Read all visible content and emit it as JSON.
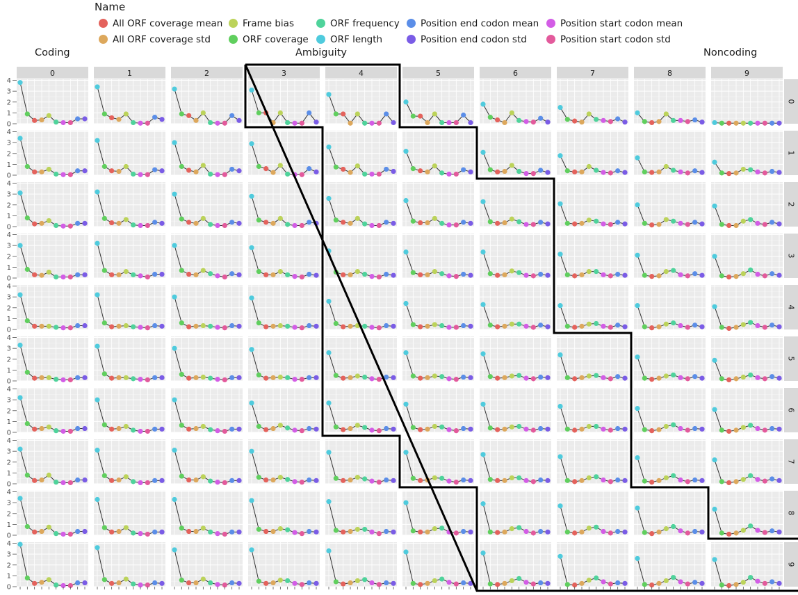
{
  "legend": {
    "title": "Name",
    "items": [
      {
        "label": "All ORF coverage mean",
        "color": "#e4625c"
      },
      {
        "label": "All ORF coverage std",
        "color": "#dda85c"
      },
      {
        "label": "Frame bias",
        "color": "#bcd35a"
      },
      {
        "label": "ORF coverage",
        "color": "#60cf5e"
      },
      {
        "label": "ORF frequency",
        "color": "#4fd39b"
      },
      {
        "label": "ORF length",
        "color": "#4fcbdd"
      },
      {
        "label": "Position end codon mean",
        "color": "#5b8ee8"
      },
      {
        "label": "Position end codon std",
        "color": "#7a5ce6"
      },
      {
        "label": "Position start codon mean",
        "color": "#d35de6"
      },
      {
        "label": "Position start codon std",
        "color": "#e35a9c"
      }
    ]
  },
  "regions": {
    "coding": "Coding",
    "ambiguity": "Ambiguity",
    "noncoding": "Noncoding"
  },
  "chart_data": {
    "type": "line",
    "facet_type": "grid",
    "col_facets": [
      "0",
      "1",
      "2",
      "3",
      "4",
      "5",
      "6",
      "7",
      "8",
      "9"
    ],
    "row_facets": [
      "0",
      "1",
      "2",
      "3",
      "4",
      "5",
      "6",
      "7",
      "8",
      "9"
    ],
    "x_order": [
      "ORF length",
      "ORF coverage",
      "All ORF coverage mean",
      "All ORF coverage std",
      "Frame bias",
      "ORF frequency",
      "Position start codon mean",
      "Position start codon std",
      "Position end codon mean",
      "Position end codon std"
    ],
    "y_ticks": [
      0,
      1,
      2,
      3,
      4
    ],
    "ylim": [
      0,
      4.1
    ],
    "grid": true,
    "legend_position": "top",
    "ambiguity_region_boundary": true,
    "panels": [
      [
        [
          3.8,
          0.9,
          0.3,
          0.35,
          0.75,
          0.15,
          0.1,
          0.1,
          0.45,
          0.45
        ],
        [
          3.4,
          0.9,
          0.55,
          0.4,
          0.9,
          0.1,
          0.05,
          0.05,
          0.6,
          0.4
        ],
        [
          3.2,
          0.9,
          0.75,
          0.3,
          1.0,
          0.1,
          0.05,
          0.05,
          0.75,
          0.3
        ],
        [
          3.1,
          1.0,
          1.0,
          0.1,
          1.0,
          0.1,
          0.05,
          0.05,
          1.0,
          0.15
        ],
        [
          2.7,
          0.9,
          0.9,
          0.05,
          0.9,
          0.05,
          0.05,
          0.05,
          0.9,
          0.1
        ],
        [
          2.0,
          0.7,
          0.7,
          0.1,
          0.9,
          0.1,
          0.1,
          0.1,
          0.8,
          0.1
        ],
        [
          1.8,
          0.6,
          0.35,
          0.1,
          1.0,
          0.3,
          0.2,
          0.15,
          0.5,
          0.15
        ],
        [
          1.5,
          0.4,
          0.25,
          0.15,
          0.9,
          0.4,
          0.3,
          0.2,
          0.45,
          0.15
        ],
        [
          1.0,
          0.2,
          0.1,
          0.2,
          0.9,
          0.3,
          0.3,
          0.2,
          0.35,
          0.15
        ],
        [
          0.1,
          0.05,
          0.05,
          0.05,
          0.05,
          0.05,
          0.05,
          0.05,
          0.05,
          0.05
        ]
      ],
      [
        [
          3.4,
          0.8,
          0.3,
          0.3,
          0.55,
          0.1,
          0.05,
          0.05,
          0.4,
          0.4
        ],
        [
          3.2,
          0.8,
          0.4,
          0.35,
          0.8,
          0.1,
          0.05,
          0.05,
          0.5,
          0.4
        ],
        [
          3.0,
          0.8,
          0.45,
          0.3,
          0.9,
          0.1,
          0.05,
          0.05,
          0.55,
          0.4
        ],
        [
          2.9,
          0.8,
          0.6,
          0.25,
          0.9,
          0.1,
          0.05,
          0.05,
          0.6,
          0.3
        ],
        [
          2.6,
          0.75,
          0.55,
          0.25,
          0.85,
          0.1,
          0.1,
          0.1,
          0.55,
          0.35
        ],
        [
          2.2,
          0.6,
          0.4,
          0.3,
          0.85,
          0.2,
          0.1,
          0.1,
          0.5,
          0.3
        ],
        [
          2.1,
          0.5,
          0.3,
          0.35,
          0.9,
          0.35,
          0.15,
          0.15,
          0.45,
          0.25
        ],
        [
          1.8,
          0.4,
          0.3,
          0.3,
          0.8,
          0.45,
          0.25,
          0.2,
          0.4,
          0.25
        ],
        [
          1.6,
          0.3,
          0.25,
          0.3,
          0.8,
          0.45,
          0.3,
          0.2,
          0.4,
          0.25
        ],
        [
          1.2,
          0.2,
          0.15,
          0.2,
          0.55,
          0.5,
          0.3,
          0.2,
          0.35,
          0.25
        ]
      ],
      [
        [
          3.1,
          0.8,
          0.25,
          0.3,
          0.55,
          0.1,
          0.05,
          0.05,
          0.3,
          0.3
        ],
        [
          3.2,
          0.75,
          0.35,
          0.3,
          0.65,
          0.15,
          0.1,
          0.1,
          0.4,
          0.3
        ],
        [
          3.0,
          0.7,
          0.4,
          0.3,
          0.75,
          0.2,
          0.1,
          0.1,
          0.4,
          0.3
        ],
        [
          2.8,
          0.6,
          0.4,
          0.3,
          0.75,
          0.2,
          0.1,
          0.1,
          0.4,
          0.3
        ],
        [
          2.6,
          0.6,
          0.4,
          0.3,
          0.75,
          0.25,
          0.1,
          0.1,
          0.4,
          0.3
        ],
        [
          2.4,
          0.5,
          0.35,
          0.35,
          0.75,
          0.3,
          0.15,
          0.15,
          0.4,
          0.3
        ],
        [
          2.3,
          0.45,
          0.3,
          0.35,
          0.7,
          0.45,
          0.2,
          0.2,
          0.4,
          0.25
        ],
        [
          2.1,
          0.3,
          0.25,
          0.3,
          0.6,
          0.5,
          0.25,
          0.2,
          0.4,
          0.25
        ],
        [
          2.0,
          0.3,
          0.15,
          0.2,
          0.65,
          0.5,
          0.3,
          0.2,
          0.4,
          0.25
        ],
        [
          1.9,
          0.2,
          0.1,
          0.1,
          0.5,
          0.65,
          0.3,
          0.2,
          0.4,
          0.25
        ]
      ],
      [
        [
          3.0,
          0.8,
          0.3,
          0.25,
          0.55,
          0.1,
          0.1,
          0.1,
          0.3,
          0.3
        ],
        [
          3.2,
          0.7,
          0.3,
          0.3,
          0.6,
          0.3,
          0.2,
          0.1,
          0.35,
          0.35
        ],
        [
          3.0,
          0.7,
          0.35,
          0.3,
          0.7,
          0.4,
          0.2,
          0.1,
          0.4,
          0.3
        ],
        [
          2.8,
          0.6,
          0.3,
          0.3,
          0.6,
          0.3,
          0.15,
          0.1,
          0.35,
          0.25
        ],
        [
          2.5,
          0.55,
          0.3,
          0.3,
          0.6,
          0.35,
          0.15,
          0.1,
          0.35,
          0.25
        ],
        [
          2.4,
          0.5,
          0.3,
          0.3,
          0.6,
          0.4,
          0.2,
          0.15,
          0.35,
          0.25
        ],
        [
          2.4,
          0.4,
          0.25,
          0.3,
          0.65,
          0.5,
          0.25,
          0.2,
          0.35,
          0.25
        ],
        [
          2.2,
          0.3,
          0.2,
          0.3,
          0.6,
          0.6,
          0.3,
          0.2,
          0.35,
          0.25
        ],
        [
          2.1,
          0.25,
          0.15,
          0.2,
          0.6,
          0.7,
          0.3,
          0.2,
          0.4,
          0.25
        ],
        [
          2.0,
          0.2,
          0.1,
          0.15,
          0.4,
          0.75,
          0.35,
          0.2,
          0.4,
          0.25
        ]
      ],
      [
        [
          3.2,
          0.8,
          0.3,
          0.3,
          0.3,
          0.2,
          0.15,
          0.15,
          0.35,
          0.35
        ],
        [
          3.2,
          0.6,
          0.25,
          0.3,
          0.35,
          0.25,
          0.2,
          0.15,
          0.35,
          0.3
        ],
        [
          3.0,
          0.6,
          0.25,
          0.3,
          0.35,
          0.3,
          0.2,
          0.15,
          0.35,
          0.3
        ],
        [
          2.9,
          0.6,
          0.25,
          0.3,
          0.35,
          0.3,
          0.2,
          0.15,
          0.35,
          0.3
        ],
        [
          2.6,
          0.55,
          0.25,
          0.3,
          0.35,
          0.3,
          0.2,
          0.15,
          0.35,
          0.3
        ],
        [
          2.4,
          0.45,
          0.25,
          0.3,
          0.45,
          0.35,
          0.2,
          0.2,
          0.35,
          0.3
        ],
        [
          2.3,
          0.4,
          0.25,
          0.3,
          0.5,
          0.5,
          0.3,
          0.2,
          0.4,
          0.25
        ],
        [
          2.2,
          0.3,
          0.2,
          0.3,
          0.5,
          0.55,
          0.3,
          0.2,
          0.4,
          0.25
        ],
        [
          2.2,
          0.25,
          0.15,
          0.25,
          0.5,
          0.6,
          0.35,
          0.2,
          0.4,
          0.25
        ],
        [
          2.1,
          0.2,
          0.1,
          0.2,
          0.45,
          0.65,
          0.35,
          0.2,
          0.4,
          0.25
        ]
      ],
      [
        [
          3.3,
          0.8,
          0.25,
          0.3,
          0.3,
          0.15,
          0.1,
          0.1,
          0.3,
          0.3
        ],
        [
          3.2,
          0.65,
          0.25,
          0.3,
          0.3,
          0.2,
          0.15,
          0.1,
          0.3,
          0.3
        ],
        [
          3.0,
          0.6,
          0.25,
          0.3,
          0.35,
          0.25,
          0.15,
          0.1,
          0.3,
          0.3
        ],
        [
          2.9,
          0.55,
          0.25,
          0.3,
          0.35,
          0.3,
          0.15,
          0.15,
          0.3,
          0.3
        ],
        [
          2.6,
          0.5,
          0.25,
          0.3,
          0.45,
          0.35,
          0.2,
          0.15,
          0.35,
          0.3
        ],
        [
          2.6,
          0.45,
          0.25,
          0.3,
          0.45,
          0.4,
          0.2,
          0.15,
          0.35,
          0.3
        ],
        [
          2.5,
          0.4,
          0.25,
          0.3,
          0.45,
          0.5,
          0.25,
          0.2,
          0.35,
          0.3
        ],
        [
          2.4,
          0.3,
          0.2,
          0.3,
          0.45,
          0.5,
          0.3,
          0.2,
          0.4,
          0.25
        ],
        [
          2.2,
          0.25,
          0.15,
          0.25,
          0.45,
          0.55,
          0.3,
          0.2,
          0.4,
          0.25
        ],
        [
          1.9,
          0.2,
          0.1,
          0.2,
          0.35,
          0.55,
          0.3,
          0.2,
          0.4,
          0.25
        ]
      ],
      [
        [
          3.2,
          0.8,
          0.3,
          0.35,
          0.5,
          0.15,
          0.1,
          0.1,
          0.35,
          0.35
        ],
        [
          3.0,
          0.7,
          0.3,
          0.35,
          0.55,
          0.2,
          0.1,
          0.1,
          0.3,
          0.3
        ],
        [
          3.0,
          0.65,
          0.3,
          0.35,
          0.55,
          0.25,
          0.15,
          0.1,
          0.3,
          0.3
        ],
        [
          2.7,
          0.55,
          0.25,
          0.35,
          0.65,
          0.4,
          0.2,
          0.15,
          0.35,
          0.3
        ],
        [
          2.7,
          0.5,
          0.25,
          0.35,
          0.65,
          0.45,
          0.2,
          0.15,
          0.35,
          0.3
        ],
        [
          2.6,
          0.45,
          0.25,
          0.3,
          0.55,
          0.5,
          0.25,
          0.15,
          0.35,
          0.3
        ],
        [
          2.6,
          0.4,
          0.25,
          0.3,
          0.5,
          0.55,
          0.3,
          0.2,
          0.35,
          0.3
        ],
        [
          2.4,
          0.3,
          0.2,
          0.3,
          0.55,
          0.55,
          0.3,
          0.2,
          0.35,
          0.3
        ],
        [
          2.2,
          0.25,
          0.15,
          0.25,
          0.55,
          0.7,
          0.35,
          0.2,
          0.35,
          0.3
        ],
        [
          2.1,
          0.2,
          0.1,
          0.2,
          0.45,
          0.65,
          0.35,
          0.2,
          0.35,
          0.3
        ]
      ],
      [
        [
          3.2,
          0.8,
          0.3,
          0.35,
          0.8,
          0.15,
          0.1,
          0.1,
          0.35,
          0.35
        ],
        [
          3.1,
          0.75,
          0.3,
          0.35,
          0.65,
          0.2,
          0.1,
          0.1,
          0.3,
          0.3
        ],
        [
          3.1,
          0.7,
          0.35,
          0.35,
          0.65,
          0.25,
          0.15,
          0.1,
          0.3,
          0.3
        ],
        [
          3.0,
          0.6,
          0.35,
          0.35,
          0.6,
          0.4,
          0.2,
          0.15,
          0.35,
          0.3
        ],
        [
          2.9,
          0.5,
          0.3,
          0.35,
          0.6,
          0.45,
          0.25,
          0.15,
          0.35,
          0.3
        ],
        [
          2.9,
          0.5,
          0.3,
          0.35,
          0.55,
          0.5,
          0.25,
          0.15,
          0.35,
          0.3
        ],
        [
          2.7,
          0.4,
          0.3,
          0.3,
          0.55,
          0.55,
          0.3,
          0.2,
          0.35,
          0.3
        ],
        [
          2.5,
          0.3,
          0.2,
          0.3,
          0.55,
          0.65,
          0.35,
          0.2,
          0.35,
          0.3
        ],
        [
          2.4,
          0.25,
          0.15,
          0.3,
          0.55,
          0.75,
          0.35,
          0.2,
          0.35,
          0.3
        ],
        [
          2.2,
          0.2,
          0.1,
          0.2,
          0.4,
          0.75,
          0.4,
          0.25,
          0.45,
          0.3
        ]
      ],
      [
        [
          3.4,
          0.8,
          0.3,
          0.35,
          0.75,
          0.15,
          0.1,
          0.1,
          0.35,
          0.35
        ],
        [
          3.3,
          0.7,
          0.3,
          0.35,
          0.7,
          0.2,
          0.15,
          0.1,
          0.3,
          0.3
        ],
        [
          3.3,
          0.65,
          0.35,
          0.35,
          0.65,
          0.3,
          0.15,
          0.1,
          0.3,
          0.3
        ],
        [
          3.2,
          0.55,
          0.35,
          0.35,
          0.6,
          0.5,
          0.25,
          0.15,
          0.35,
          0.3
        ],
        [
          3.1,
          0.45,
          0.3,
          0.35,
          0.55,
          0.55,
          0.3,
          0.15,
          0.35,
          0.3
        ],
        [
          3.0,
          0.4,
          0.3,
          0.3,
          0.6,
          0.65,
          0.3,
          0.2,
          0.35,
          0.3
        ],
        [
          2.9,
          0.3,
          0.25,
          0.3,
          0.6,
          0.7,
          0.35,
          0.2,
          0.35,
          0.3
        ],
        [
          2.7,
          0.3,
          0.2,
          0.3,
          0.65,
          0.75,
          0.35,
          0.2,
          0.35,
          0.3
        ],
        [
          2.5,
          0.25,
          0.15,
          0.3,
          0.6,
          0.8,
          0.4,
          0.2,
          0.35,
          0.3
        ],
        [
          2.4,
          0.2,
          0.1,
          0.2,
          0.45,
          0.85,
          0.45,
          0.25,
          0.4,
          0.3
        ]
      ],
      [
        [
          3.9,
          0.8,
          0.3,
          0.4,
          0.65,
          0.15,
          0.1,
          0.1,
          0.35,
          0.35
        ],
        [
          3.6,
          0.65,
          0.3,
          0.35,
          0.7,
          0.25,
          0.15,
          0.15,
          0.35,
          0.3
        ],
        [
          3.4,
          0.6,
          0.35,
          0.35,
          0.7,
          0.35,
          0.2,
          0.15,
          0.35,
          0.3
        ],
        [
          3.4,
          0.5,
          0.3,
          0.35,
          0.6,
          0.55,
          0.3,
          0.2,
          0.35,
          0.3
        ],
        [
          3.3,
          0.45,
          0.25,
          0.35,
          0.55,
          0.65,
          0.35,
          0.2,
          0.35,
          0.3
        ],
        [
          3.2,
          0.3,
          0.2,
          0.3,
          0.55,
          0.7,
          0.4,
          0.25,
          0.35,
          0.3
        ],
        [
          3.1,
          0.25,
          0.2,
          0.3,
          0.55,
          0.75,
          0.4,
          0.25,
          0.35,
          0.3
        ],
        [
          2.8,
          0.2,
          0.15,
          0.3,
          0.6,
          0.8,
          0.45,
          0.25,
          0.35,
          0.3
        ],
        [
          2.6,
          0.2,
          0.15,
          0.3,
          0.55,
          0.85,
          0.45,
          0.25,
          0.4,
          0.3
        ],
        [
          2.5,
          0.15,
          0.1,
          0.2,
          0.4,
          0.85,
          0.5,
          0.3,
          0.45,
          0.3
        ]
      ]
    ]
  }
}
